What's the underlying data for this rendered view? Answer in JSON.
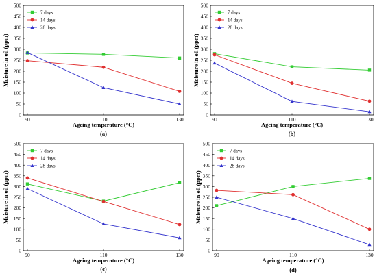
{
  "chart_data": [
    {
      "type": "line",
      "panel_label": "(a)",
      "xlabel": "Ageing temperature (°C)",
      "ylabel": "Moisture in oil (ppm)",
      "x": [
        90,
        110,
        130
      ],
      "xticks": [
        "90",
        "110",
        "130"
      ],
      "ylim": [
        0,
        500
      ],
      "yticks": [
        "0",
        "50",
        "100",
        "150",
        "200",
        "250",
        "300",
        "350",
        "400",
        "450",
        "500"
      ],
      "legend_position": "top-left",
      "series": [
        {
          "name": "7 days",
          "color": "#33cc33",
          "marker": "square",
          "values": [
            283,
            277,
            260
          ]
        },
        {
          "name": "14 days",
          "color": "#e03030",
          "marker": "circle",
          "values": [
            248,
            218,
            108
          ]
        },
        {
          "name": "28 days",
          "color": "#3333cc",
          "marker": "triangle",
          "values": [
            285,
            125,
            50
          ]
        }
      ]
    },
    {
      "type": "line",
      "panel_label": "(b)",
      "xlabel": "Ageing temperature (°C)",
      "ylabel": "Moisture in oil (ppm)",
      "x": [
        90,
        110,
        130
      ],
      "xticks": [
        "90",
        "110",
        "130"
      ],
      "ylim": [
        0,
        500
      ],
      "yticks": [
        "0",
        "50",
        "100",
        "150",
        "200",
        "250",
        "300",
        "350",
        "400",
        "450",
        "500"
      ],
      "legend_position": "top-left",
      "series": [
        {
          "name": "7 days",
          "color": "#33cc33",
          "marker": "square",
          "values": [
            280,
            220,
            205
          ]
        },
        {
          "name": "14 days",
          "color": "#e03030",
          "marker": "circle",
          "values": [
            275,
            145,
            63
          ]
        },
        {
          "name": "28 days",
          "color": "#3333cc",
          "marker": "triangle",
          "values": [
            237,
            62,
            15
          ]
        }
      ]
    },
    {
      "type": "line",
      "panel_label": "(c)",
      "xlabel": "Ageing temperature (°C)",
      "ylabel": "Moisture in oil (ppm)",
      "x": [
        90,
        110,
        130
      ],
      "xticks": [
        "90",
        "110",
        "130"
      ],
      "ylim": [
        0,
        500
      ],
      "yticks": [
        "0",
        "50",
        "100",
        "150",
        "200",
        "250",
        "300",
        "350",
        "400",
        "450",
        "500"
      ],
      "legend_position": "top-left",
      "series": [
        {
          "name": "7 days",
          "color": "#33cc33",
          "marker": "square",
          "values": [
            312,
            232,
            318
          ]
        },
        {
          "name": "14 days",
          "color": "#e03030",
          "marker": "circle",
          "values": [
            340,
            230,
            122
          ]
        },
        {
          "name": "28 days",
          "color": "#3333cc",
          "marker": "triangle",
          "values": [
            290,
            125,
            60
          ]
        }
      ]
    },
    {
      "type": "line",
      "panel_label": "(d)",
      "xlabel": "Ageing temperature (°C)",
      "ylabel": "Moisture in oil (ppm)",
      "x": [
        90,
        110,
        130
      ],
      "xticks": [
        "90",
        "110",
        "130"
      ],
      "ylim": [
        0,
        500
      ],
      "yticks": [
        "0",
        "50",
        "100",
        "150",
        "200",
        "250",
        "300",
        "350",
        "400",
        "450",
        "500"
      ],
      "legend_position": "top-left",
      "series": [
        {
          "name": "7 days",
          "color": "#33cc33",
          "marker": "square",
          "values": [
            210,
            300,
            338
          ]
        },
        {
          "name": "14 days",
          "color": "#e03030",
          "marker": "circle",
          "values": [
            282,
            262,
            100
          ]
        },
        {
          "name": "28 days",
          "color": "#3333cc",
          "marker": "triangle",
          "values": [
            250,
            150,
            28
          ]
        }
      ]
    }
  ]
}
